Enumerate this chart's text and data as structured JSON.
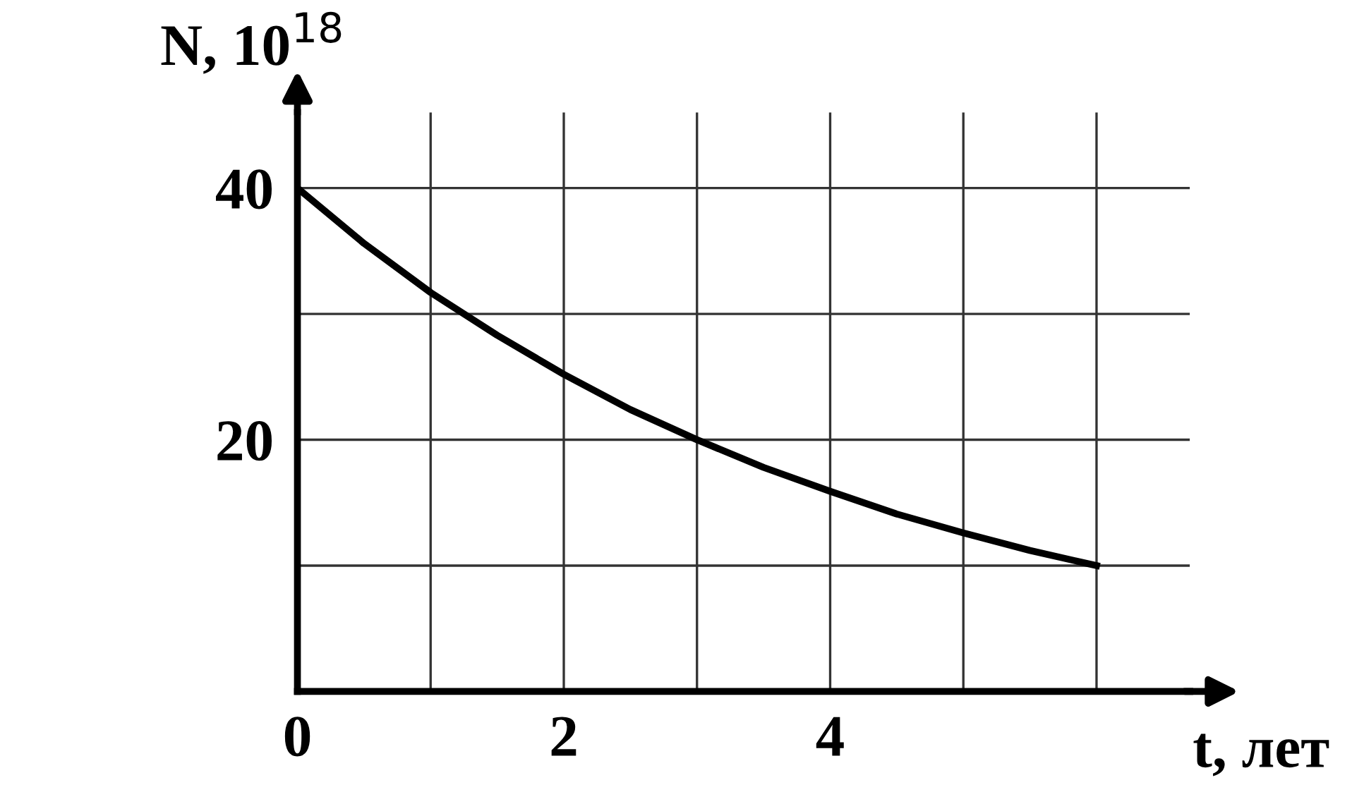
{
  "chart_data": {
    "type": "line",
    "xlabel": "t, лет",
    "ylabel": "N, 10$^{18}$",
    "x": [
      0,
      0.5,
      1,
      1.5,
      2,
      2.5,
      3,
      3.5,
      4,
      4.5,
      5,
      5.5,
      6
    ],
    "series": [
      {
        "color": "#000000",
        "values": [
          40,
          35.6,
          31.7,
          28.3,
          25.2,
          22.4,
          20,
          17.8,
          15.9,
          14.1,
          12.6,
          11.2,
          10
        ]
      }
    ],
    "xlim": [
      0,
      6.7
    ],
    "ylim": [
      0,
      46
    ],
    "xticks": [
      0,
      {
        "value": 1,
        "label": null
      },
      2,
      {
        "value": 3,
        "label": null
      },
      4,
      {
        "value": 5,
        "label": null
      },
      {
        "value": 6,
        "label": null
      }
    ],
    "yticks": [
      {
        "value": 0,
        "label": null
      },
      {
        "value": 10,
        "label": null
      },
      20,
      {
        "value": 30,
        "label": null
      },
      40
    ],
    "grid": true,
    "marker": "none",
    "line_style": "solid",
    "legend": false
  }
}
